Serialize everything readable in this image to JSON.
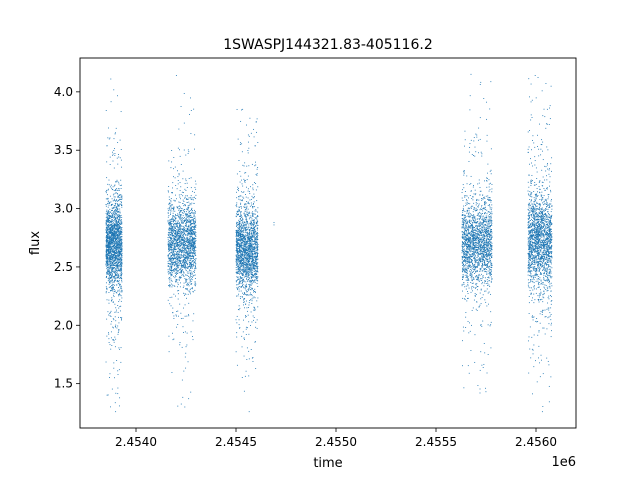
{
  "chart_data": {
    "type": "scatter",
    "title": "1SWASPJ144321.83-405116.2",
    "xlabel": "time",
    "ylabel": "flux",
    "x_offset_label": "1e6",
    "xlim": [
      2.45372,
      2.4562
    ],
    "ylim": [
      1.12,
      4.29
    ],
    "x_ticks": [
      2.454,
      2.4545,
      2.455,
      2.4555,
      2.456
    ],
    "x_tick_labels": [
      "2.4540",
      "2.4545",
      "2.4550",
      "2.4555",
      "2.4560"
    ],
    "y_ticks": [
      1.5,
      2.0,
      2.5,
      3.0,
      3.5,
      4.0
    ],
    "y_tick_labels": [
      "1.5",
      "2.0",
      "2.5",
      "3.0",
      "3.5",
      "4.0"
    ],
    "grid": false,
    "legend": "none",
    "marker_color": "#1f77b4",
    "series": [
      {
        "clusters": [
          {
            "x_start": 2.45385,
            "x_end": 2.45393,
            "flux_center": 2.7,
            "flux_core_spread": 0.18,
            "flux_min": 1.26,
            "flux_max": 4.11
          },
          {
            "x_start": 2.45416,
            "x_end": 2.4543,
            "flux_center": 2.7,
            "flux_core_spread": 0.16,
            "flux_min": 1.3,
            "flux_max": 4.14
          },
          {
            "x_start": 2.4545,
            "x_end": 2.45461,
            "flux_center": 2.65,
            "flux_core_spread": 0.17,
            "flux_min": 1.26,
            "flux_max": 3.85
          },
          {
            "x_start": 2.45563,
            "x_end": 2.45578,
            "flux_center": 2.7,
            "flux_core_spread": 0.17,
            "flux_min": 1.42,
            "flux_max": 4.15
          },
          {
            "x_start": 2.45596,
            "x_end": 2.45608,
            "flux_center": 2.72,
            "flux_core_spread": 0.19,
            "flux_min": 1.26,
            "flux_max": 4.14
          }
        ],
        "isolated_points": [
          {
            "x": 2.45469,
            "y": 2.86
          },
          {
            "x": 2.45469,
            "y": 2.88
          }
        ]
      }
    ]
  }
}
